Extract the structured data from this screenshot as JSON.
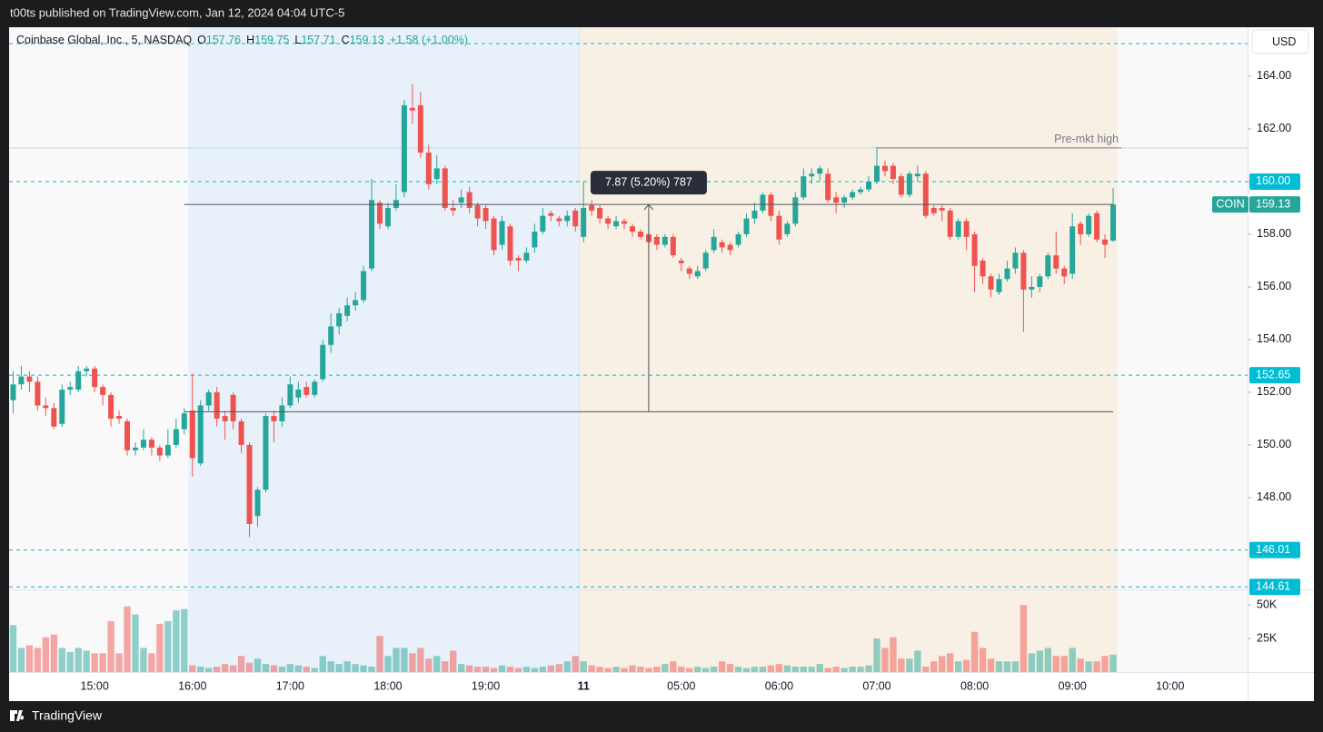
{
  "header": {
    "text": "t00ts published on TradingView.com, Jan 12, 2024 04:04 UTC-5"
  },
  "footer": {
    "brand": "TradingView"
  },
  "chart_data": {
    "type": "candlestick",
    "currency": "USD",
    "legend": {
      "name": "Coinbase Global, Inc., 5, NASDAQ",
      "items": [
        {
          "key": "O",
          "value": "157.76"
        },
        {
          "key": "H",
          "value": "159.75"
        },
        {
          "key": "L",
          "value": "157.71"
        },
        {
          "key": "C",
          "value": "159.13"
        }
      ],
      "change": "+1.58 (+1.00%)"
    },
    "up_color": "#26a69a",
    "down_color": "#ef5350",
    "level_color": "#00bcd4",
    "categories": [
      null,
      null,
      null,
      null,
      null,
      null,
      null,
      null,
      null,
      null,
      "15:00",
      null,
      null,
      null,
      null,
      null,
      null,
      null,
      null,
      null,
      null,
      null,
      "16:00",
      null,
      null,
      null,
      null,
      null,
      null,
      null,
      null,
      null,
      null,
      null,
      "17:00",
      null,
      null,
      null,
      null,
      null,
      null,
      null,
      null,
      null,
      null,
      null,
      "18:00",
      null,
      null,
      null,
      null,
      null,
      null,
      null,
      null,
      null,
      null,
      null,
      "19:00",
      null,
      null,
      null,
      null,
      null,
      null,
      null,
      null,
      null,
      null,
      null,
      "11",
      null,
      null,
      null,
      null,
      null,
      null,
      null,
      null,
      null,
      null,
      null,
      "05:00",
      null,
      null,
      null,
      null,
      null,
      null,
      null,
      null,
      null,
      null,
      null,
      "06:00",
      null,
      null,
      null,
      null,
      null,
      null,
      null,
      null,
      null,
      null,
      null,
      "07:00",
      null,
      null,
      null,
      null,
      null,
      null,
      null,
      null,
      null,
      null,
      null,
      "08:00",
      null,
      null,
      null,
      null,
      null,
      null,
      null,
      null,
      null,
      null,
      null,
      "09:00",
      null,
      null,
      null,
      null,
      null,
      null,
      null,
      null,
      null,
      null,
      null,
      "10:00",
      null,
      null,
      null,
      null,
      null,
      null,
      null,
      null,
      null
    ],
    "open": [
      151.7,
      152.3,
      152.6,
      152.4,
      151.5,
      151.4,
      150.8,
      152.1,
      152.1,
      152.8,
      152.9,
      152.2,
      151.9,
      151.1,
      150.9,
      149.8,
      149.9,
      150.2,
      149.9,
      149.6,
      150.0,
      150.6,
      151.3,
      149.3,
      151.5,
      152.0,
      151.1,
      151.9,
      150.9,
      150.0,
      147.3,
      148.3,
      151.1,
      150.9,
      151.5,
      151.8,
      152.2,
      151.9,
      152.5,
      153.8,
      154.5,
      154.9,
      155.3,
      155.5,
      156.7,
      159.2,
      158.3,
      159.0,
      159.6,
      162.8,
      162.9,
      161.1,
      160.1,
      160.5,
      159.0,
      159.2,
      159.6,
      159.1,
      159.0,
      158.6,
      157.6,
      158.3,
      157.1,
      157.0,
      157.5,
      158.1,
      158.8,
      158.6,
      158.5,
      158.9,
      157.9,
      159.1,
      159.0,
      158.6,
      158.3,
      158.5,
      158.3,
      158.1,
      158.0,
      157.9,
      157.6,
      157.9,
      157.0,
      156.7,
      156.4,
      156.7,
      157.4,
      157.7,
      157.6,
      157.6,
      158.0,
      158.6,
      158.9,
      159.5,
      158.7,
      158.0,
      158.4,
      159.4,
      160.2,
      160.3,
      160.3,
      159.4,
      159.2,
      159.4,
      159.6,
      159.7,
      160.0,
      160.6,
      160.6,
      160.2,
      159.5,
      160.2,
      160.3,
      159.0,
      159.0,
      158.9,
      157.9,
      158.5,
      158.0,
      157.0,
      156.4,
      155.8,
      156.3,
      156.7,
      157.3,
      155.9,
      156.0,
      156.4,
      157.2,
      156.7,
      156.5,
      158.4,
      158.0,
      158.8,
      157.8,
      157.76,
      null,
      null,
      null,
      null,
      null,
      null,
      null,
      null,
      null,
      null,
      null,
      null,
      null,
      null,
      null,
      null
    ],
    "high": [
      152.8,
      153.0,
      152.8,
      152.6,
      151.8,
      151.6,
      152.3,
      152.4,
      153.0,
      153.0,
      153.0,
      152.3,
      152.0,
      151.3,
      151.0,
      150.1,
      150.6,
      150.3,
      150.0,
      150.6,
      151.0,
      151.4,
      152.7,
      151.7,
      152.1,
      152.2,
      151.3,
      152.0,
      151.0,
      150.1,
      148.4,
      151.2,
      151.3,
      151.8,
      152.6,
      152.4,
      152.4,
      152.5,
      154.0,
      155.0,
      155.2,
      155.6,
      155.8,
      156.8,
      160.1,
      159.3,
      159.2,
      159.9,
      163.1,
      163.7,
      163.4,
      161.4,
      161.0,
      160.6,
      159.3,
      159.7,
      159.8,
      159.2,
      159.1,
      158.7,
      158.7,
      158.4,
      157.2,
      157.5,
      158.4,
      159.0,
      158.9,
      158.7,
      158.9,
      159.0,
      160.0,
      159.3,
      159.1,
      158.7,
      158.7,
      158.6,
      158.4,
      158.2,
      158.1,
      158.0,
      158.0,
      158.0,
      157.1,
      156.8,
      156.8,
      157.4,
      158.2,
      157.8,
      157.7,
      158.1,
      158.8,
      159.2,
      159.6,
      159.6,
      158.9,
      158.5,
      159.6,
      160.5,
      160.5,
      160.6,
      160.5,
      159.6,
      159.5,
      159.7,
      159.8,
      160.2,
      161.3,
      160.8,
      160.7,
      160.3,
      160.4,
      160.6,
      160.4,
      159.1,
      159.1,
      159.0,
      158.6,
      158.6,
      158.1,
      157.1,
      156.5,
      156.5,
      157.0,
      157.5,
      157.4,
      156.4,
      156.5,
      157.3,
      158.1,
      156.8,
      158.8,
      158.5,
      158.8,
      158.9,
      158.0,
      159.75,
      null,
      null,
      null,
      null,
      null,
      null,
      null,
      null,
      null,
      null,
      null,
      null,
      null,
      null,
      null,
      null
    ],
    "low": [
      151.2,
      152.1,
      152.0,
      151.3,
      151.1,
      150.6,
      150.7,
      151.9,
      152.0,
      152.6,
      152.0,
      151.5,
      150.7,
      150.8,
      149.6,
      149.6,
      149.8,
      149.6,
      149.4,
      149.5,
      149.9,
      150.4,
      148.8,
      149.2,
      151.3,
      150.7,
      150.2,
      150.6,
      149.7,
      146.5,
      146.9,
      148.2,
      150.1,
      150.7,
      151.4,
      151.6,
      151.8,
      151.8,
      152.4,
      153.5,
      154.2,
      154.7,
      155.1,
      155.4,
      156.6,
      158.2,
      158.2,
      158.9,
      159.4,
      162.2,
      160.9,
      159.7,
      159.9,
      158.9,
      158.7,
      159.0,
      158.8,
      158.3,
      158.2,
      157.2,
      157.4,
      156.8,
      156.6,
      156.9,
      157.3,
      158.0,
      158.5,
      158.3,
      158.3,
      158.1,
      157.7,
      158.7,
      158.4,
      158.2,
      158.2,
      158.2,
      157.9,
      157.8,
      157.4,
      157.4,
      157.5,
      157.1,
      156.6,
      156.3,
      156.3,
      156.6,
      157.3,
      157.3,
      157.2,
      157.5,
      157.9,
      158.4,
      158.8,
      158.5,
      157.6,
      157.9,
      158.3,
      159.3,
      159.9,
      160.0,
      159.2,
      158.8,
      159.0,
      159.3,
      159.5,
      159.6,
      159.9,
      160.2,
      159.9,
      159.4,
      159.4,
      160.0,
      158.6,
      158.7,
      158.5,
      157.8,
      157.8,
      157.4,
      155.8,
      156.1,
      155.6,
      155.7,
      156.2,
      156.5,
      154.3,
      155.6,
      155.8,
      156.3,
      156.5,
      156.1,
      156.3,
      157.6,
      157.9,
      157.7,
      157.1,
      157.71,
      null,
      null,
      null,
      null,
      null,
      null,
      null,
      null,
      null,
      null,
      null,
      null,
      null,
      null,
      null,
      null
    ],
    "close": [
      152.3,
      152.6,
      152.4,
      151.5,
      151.4,
      150.7,
      152.1,
      152.2,
      152.8,
      152.9,
      152.2,
      151.9,
      151.0,
      151.0,
      149.8,
      149.9,
      150.2,
      149.9,
      149.6,
      150.0,
      150.6,
      151.2,
      149.5,
      151.5,
      152.0,
      151.0,
      150.9,
      150.9,
      150.0,
      147.0,
      148.3,
      151.1,
      150.9,
      151.5,
      152.3,
      152.1,
      151.9,
      152.4,
      153.8,
      154.5,
      155.0,
      155.3,
      155.5,
      156.6,
      159.3,
      158.4,
      159.0,
      159.3,
      162.9,
      162.7,
      161.1,
      159.9,
      160.5,
      159.0,
      158.9,
      159.4,
      159.0,
      158.6,
      158.5,
      157.4,
      158.5,
      157.0,
      157.0,
      157.3,
      158.1,
      158.7,
      158.7,
      158.5,
      158.7,
      158.3,
      159.0,
      158.9,
      158.6,
      158.4,
      158.5,
      158.4,
      158.1,
      157.9,
      157.7,
      157.6,
      157.9,
      157.2,
      156.9,
      156.5,
      156.6,
      157.3,
      157.9,
      157.5,
      157.4,
      158.0,
      158.6,
      158.9,
      159.5,
      158.7,
      157.8,
      158.4,
      159.4,
      160.2,
      160.3,
      160.5,
      159.3,
      159.2,
      159.4,
      159.6,
      159.7,
      160.0,
      160.6,
      160.4,
      160.1,
      159.5,
      160.3,
      160.3,
      158.7,
      158.8,
      158.9,
      157.9,
      158.5,
      157.9,
      156.8,
      156.4,
      155.9,
      156.3,
      156.7,
      157.3,
      155.9,
      156.0,
      156.4,
      157.2,
      156.7,
      156.4,
      158.3,
      158.0,
      158.7,
      157.8,
      157.6,
      159.13,
      null,
      null,
      null,
      null,
      null,
      null,
      null,
      null,
      null,
      null,
      null,
      null,
      null,
      null,
      null,
      null
    ],
    "volume": [
      35000,
      18000,
      20000,
      18000,
      26000,
      28000,
      18000,
      15000,
      18000,
      16000,
      14000,
      14000,
      38000,
      14000,
      49000,
      43000,
      18000,
      14000,
      36000,
      38000,
      46000,
      47000,
      5000,
      4000,
      3000,
      4000,
      6000,
      5000,
      12000,
      7000,
      10000,
      6000,
      5000,
      4000,
      6000,
      5000,
      4000,
      3000,
      12000,
      8000,
      6000,
      8000,
      6000,
      5000,
      4000,
      27000,
      12000,
      18000,
      18000,
      14000,
      18000,
      10000,
      12000,
      8000,
      16000,
      6000,
      5000,
      4000,
      4000,
      3000,
      5000,
      4000,
      3000,
      4000,
      3000,
      4000,
      5000,
      6000,
      8000,
      12000,
      8000,
      5000,
      4000,
      3000,
      4000,
      3000,
      5000,
      4000,
      3000,
      4000,
      6000,
      8000,
      4000,
      3000,
      4000,
      3000,
      4000,
      8000,
      6000,
      4000,
      3000,
      4000,
      4000,
      5000,
      6000,
      5000,
      4000,
      4000,
      4000,
      6000,
      3000,
      4000,
      3000,
      4000,
      4000,
      5000,
      25000,
      18000,
      26000,
      10000,
      10000,
      16000,
      4000,
      8000,
      12000,
      14000,
      8000,
      9000,
      30000,
      18000,
      10000,
      8000,
      8000,
      8000,
      50000,
      14000,
      16000,
      18000,
      12000,
      12000,
      18000,
      10000,
      8000,
      8000,
      12000,
      13000,
      null,
      null,
      null,
      null,
      null,
      null,
      null,
      null,
      null,
      null,
      null,
      null,
      null,
      null,
      null,
      null
    ],
    "ylim": [
      144.55,
      165.86
    ],
    "yticks": [
      {
        "value": 148,
        "label": "148.00"
      },
      {
        "value": 150,
        "label": "150.00"
      },
      {
        "value": 152,
        "label": "152.00"
      },
      {
        "value": 154,
        "label": "154.00"
      },
      {
        "value": 156,
        "label": "156.00"
      },
      {
        "value": 158,
        "label": "158.00"
      },
      {
        "value": 160,
        "label": "160.00"
      },
      {
        "value": 162,
        "label": "162.00"
      },
      {
        "value": 164,
        "label": "164.00"
      }
    ],
    "vlim": [
      0,
      61000
    ],
    "vticks": [
      {
        "value": 25000,
        "label": "25K"
      },
      {
        "value": 50000,
        "label": "50K"
      }
    ],
    "levels": [
      {
        "value": 160,
        "label": "160.00"
      },
      {
        "value": 152.65,
        "label": "152.65"
      },
      {
        "value": 146.01,
        "label": "146.01"
      },
      {
        "value": 144.61,
        "label": "144.61"
      }
    ],
    "unlabeled_levels": [
      165.24
    ],
    "last_price": {
      "symbol": "COIN",
      "label": "159.13",
      "value": 159.13
    },
    "premarket_high": {
      "label": "Pre-mkt high",
      "value": 161.28
    },
    "measure": {
      "label": "7.87 (5.20%) 787",
      "from": 151.26,
      "to": 159.13
    }
  }
}
